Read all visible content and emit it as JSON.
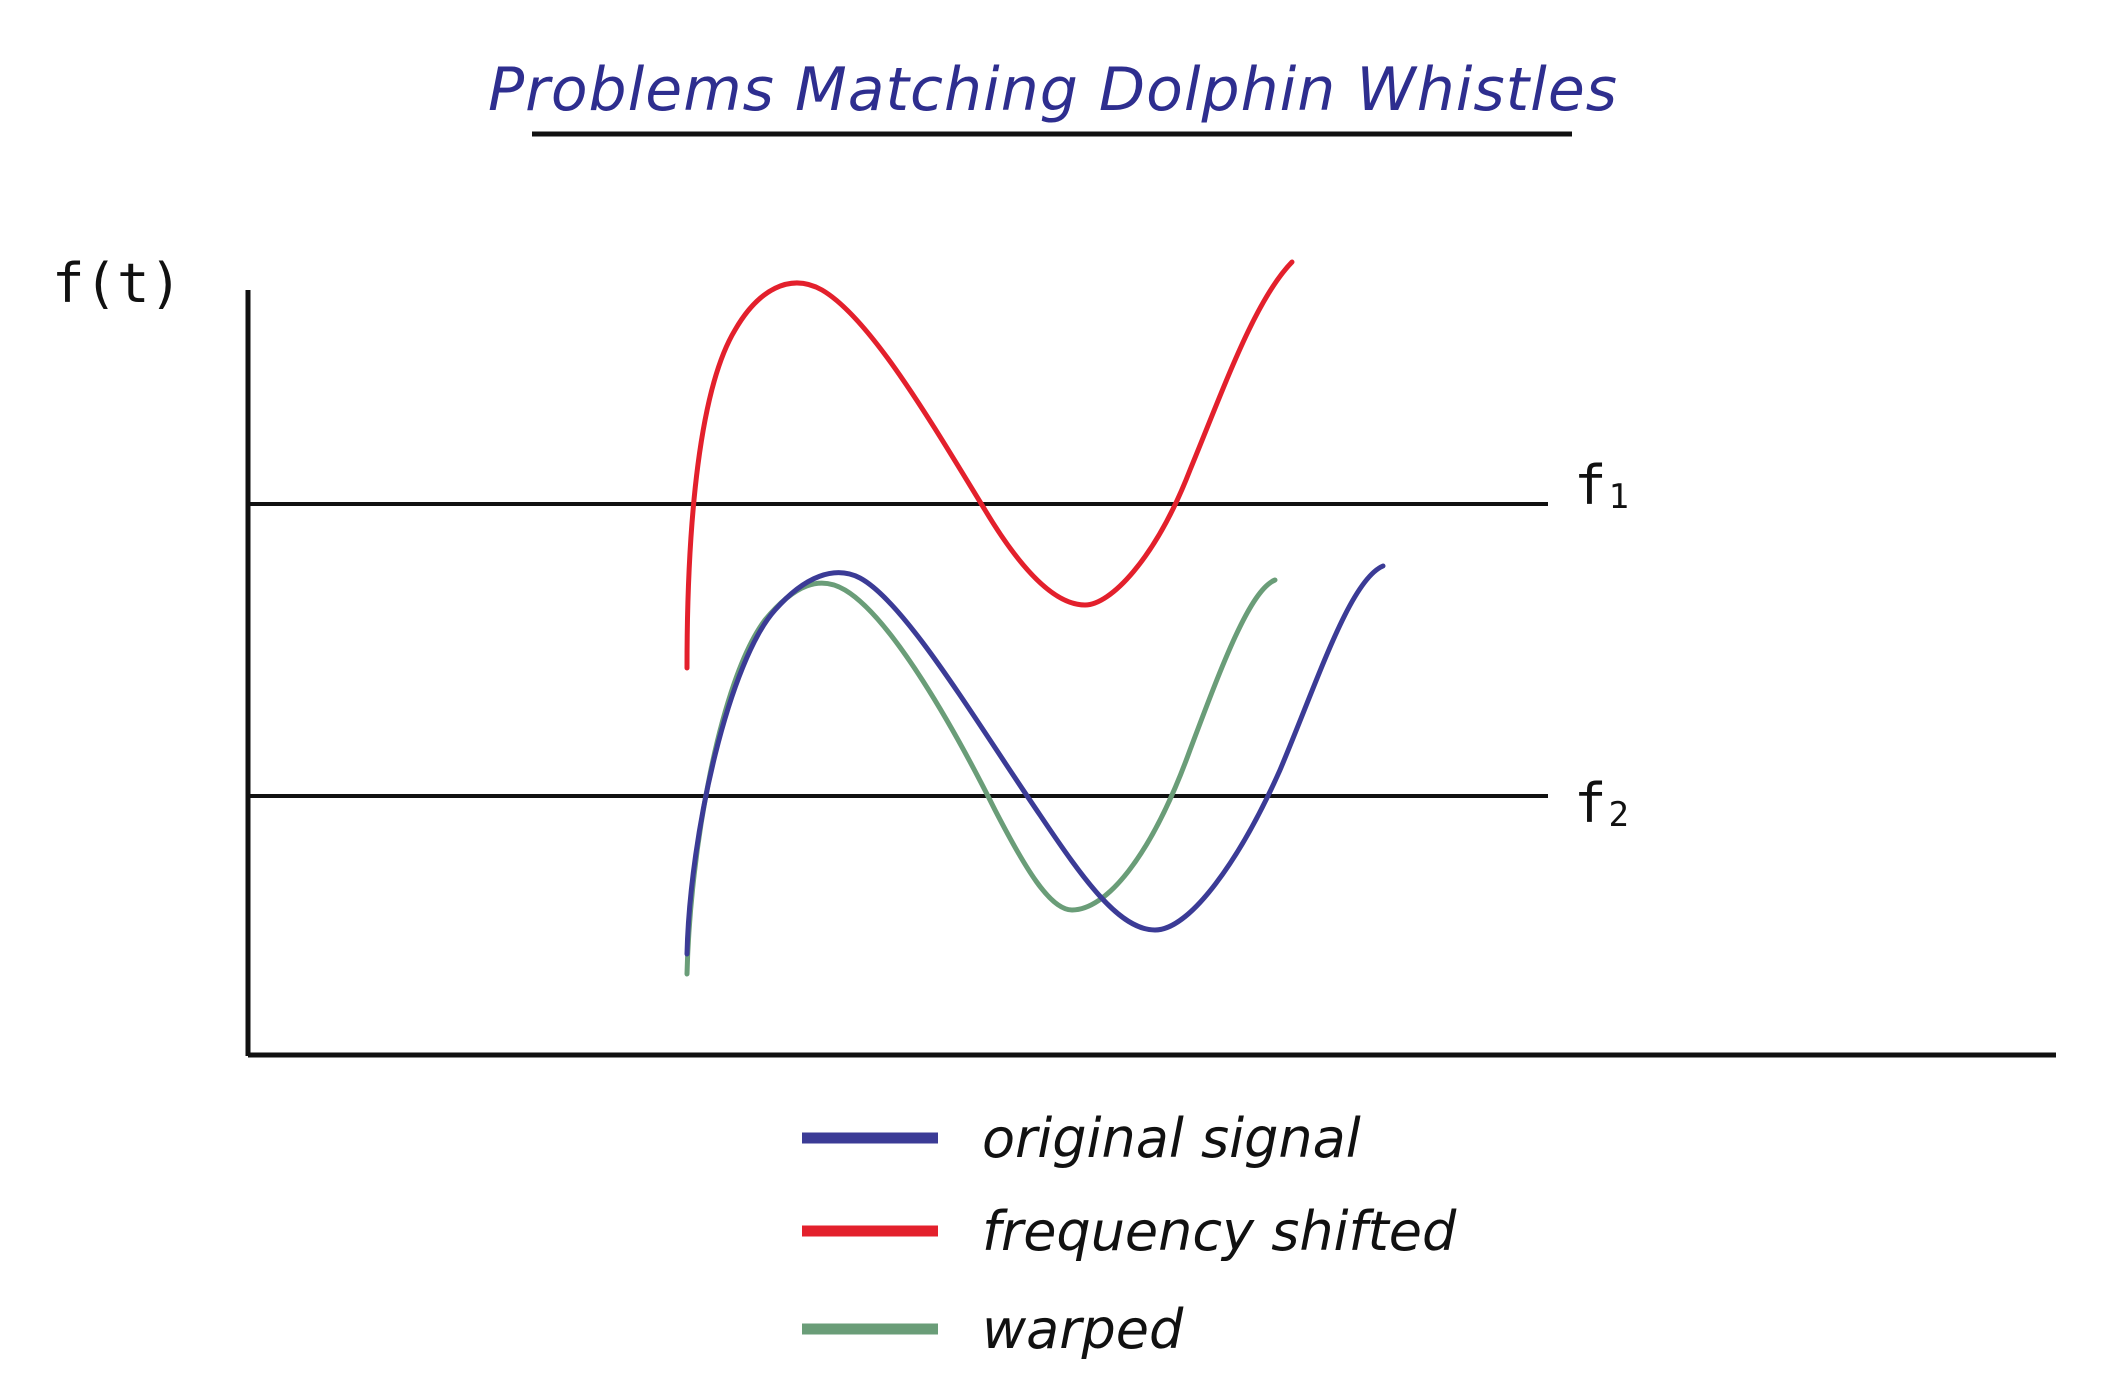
{
  "title": "Problems Matching Dolphin Whistles",
  "y_axis_label": "f(t)",
  "reference_lines": [
    {
      "base": "f",
      "sub": "1"
    },
    {
      "base": "f",
      "sub": "2"
    }
  ],
  "curves": [
    {
      "id": "original",
      "color": "#3b3b96"
    },
    {
      "id": "shifted",
      "color": "#e3202c"
    },
    {
      "id": "warped",
      "color": "#6a9d78"
    }
  ],
  "legend": [
    {
      "label": "original signal",
      "color": "#3b3b96"
    },
    {
      "label": "frequency shifted",
      "color": "#e3202c"
    },
    {
      "label": "warped",
      "color": "#6a9d78"
    }
  ]
}
